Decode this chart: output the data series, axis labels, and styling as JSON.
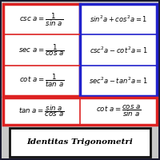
{
  "background": "#1a1a2e",
  "page_bg": "#d0d0d0",
  "title_text": "Identitas Trigonometri",
  "red_box_color": "#dd2222",
  "blue_box_color": "#2222cc",
  "cell_bg": "#ffffff",
  "title_border": "#111111",
  "text_color": "#000000",
  "left_formulas": [
    "$\\mathit{csc}\\ \\mathit{a} = \\dfrac{1}{\\mathit{sin}\\ \\mathit{a}}$",
    "$\\mathit{sec}\\ \\mathit{a} = \\dfrac{1}{\\mathit{cos}\\ \\mathit{a}}$",
    "$\\mathit{cot}\\ \\mathit{a} = \\dfrac{1}{\\mathit{tan}\\ \\mathit{a}}$"
  ],
  "right_formulas": [
    "$\\mathit{sin}^2\\mathit{a} + \\mathit{cos}^2\\mathit{a} = 1$",
    "$\\mathit{csc}^2\\mathit{a} - \\mathit{cot}^2\\mathit{a} = 1$",
    "$\\mathit{sec}^2\\mathit{a} - \\mathit{tan}^2\\mathit{a} = 1$"
  ],
  "bottom_left": "$\\mathit{tan}\\ \\mathit{a} = \\dfrac{\\mathit{sin}\\ \\mathit{a}}{\\mathit{cos}\\ \\mathit{a}}$",
  "bottom_right": "$\\mathit{cot}\\ \\mathit{a} = \\dfrac{\\mathit{cos}\\ \\mathit{a}}{\\mathit{sin}\\ \\mathit{a}}$"
}
